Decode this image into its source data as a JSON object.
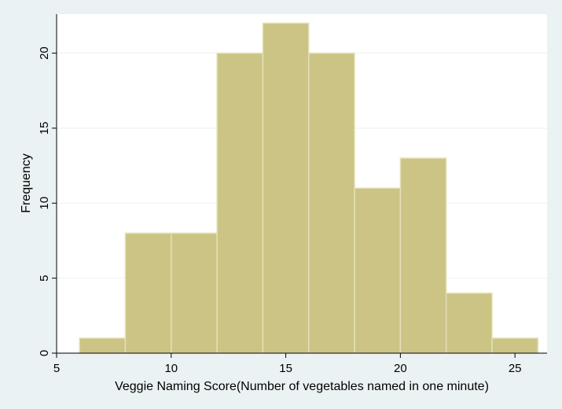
{
  "chart_data": {
    "type": "bar",
    "title": "",
    "xlabel": "Veggie Naming Score(Number of vegetables named in one minute)",
    "ylabel": "Frequency",
    "bin_edges": [
      6,
      8,
      10,
      12,
      14,
      16,
      18,
      20,
      22,
      24,
      26
    ],
    "values": [
      1,
      8,
      8,
      20,
      22,
      20,
      11,
      13,
      4,
      1
    ],
    "xlim": [
      5,
      26.4
    ],
    "ylim": [
      0,
      22.6
    ],
    "x_ticks": [
      "5",
      "10",
      "15",
      "20",
      "25"
    ],
    "y_ticks": [
      "0",
      "5",
      "10",
      "15",
      "20"
    ],
    "grid": true,
    "colors": {
      "bar_fill": "#cbc484",
      "bar_edge": "#e4e0b8",
      "plot_bg": "#ffffff",
      "outer_bg": "#eaf2f3",
      "grid": "#eaf2f3",
      "axis": "#000000"
    }
  }
}
